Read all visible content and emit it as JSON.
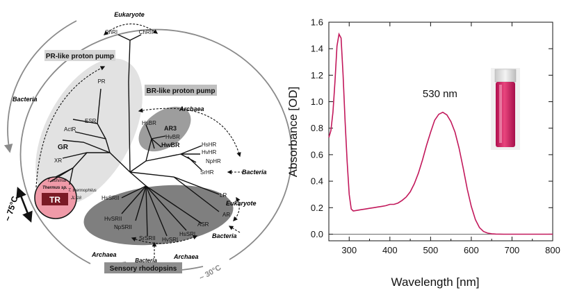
{
  "tree": {
    "groups": {
      "eukaryote_top": "Eukaryote",
      "pr_pump": "PR-like proton pump",
      "br_pump": "BR-like proton pump",
      "sensory": "Sensory  rhodopsins",
      "bacteria_left": "Bacteria",
      "archaea_br": "Archaea",
      "bacteria_srhr": "Bacteria",
      "eukaryote_lr": "Eukaryote",
      "bacteria_asr": "Bacteria",
      "archaea_sens_left": "Archaea",
      "archaea_sens_right": "Archaea",
      "bacteria_sens": "Bacteria"
    },
    "leaves": {
      "chri": "ChRI",
      "chrii": "ChRII",
      "pr": "PR",
      "esr": "ESR",
      "actr": "ActR",
      "gr": "GR",
      "xr": "XR",
      "hsbr": "HsBR",
      "ar3": "AR3",
      "hvbr": "HvBR",
      "hwbr": "HwBR",
      "hshr": "HsHR",
      "hvhr": "HvHR",
      "nphr": "NpHR",
      "srhr": "SrHR",
      "lr": "LR",
      "ar": "AR",
      "asr": "ASR",
      "hssrii": "HsSRII",
      "hvsrii": "HvSRII",
      "npsrii": "NpSRII",
      "srsrii": "SrSRII",
      "hvsri": "HvSRI",
      "hssri": "HsSRI"
    },
    "tr": {
      "label": "TR",
      "species_1": "T. oshimai",
      "species_2": "Thermus sp.",
      "species_3": "T. thermophilus",
      "species_4": "JL-18"
    },
    "temps": {
      "hot": "~ 75°C",
      "cool": "~ 30°C"
    }
  },
  "chart_data": {
    "type": "line",
    "ylabel": "Absorbance [OD]",
    "xlabel": "Wavelength [nm]",
    "xlim": [
      250,
      800
    ],
    "ylim": [
      -0.05,
      1.6
    ],
    "xticks": [
      300,
      400,
      500,
      600,
      700,
      800
    ],
    "yticks": [
      0.0,
      0.2,
      0.4,
      0.6,
      0.8,
      1.0,
      1.2,
      1.4,
      1.6
    ],
    "ytick_labels": [
      "0.0",
      "0.2",
      "0.4",
      "0.6",
      "0.8",
      "1.0",
      "1.2",
      "1.4",
      "1.6"
    ],
    "annotation": {
      "text": "530 nm",
      "x": 530,
      "y": 0.92
    },
    "line_color": "#c2185b",
    "series": [
      {
        "x": [
          250,
          255,
          260,
          265,
          270,
          275,
          280,
          285,
          290,
          295,
          300,
          305,
          310,
          320,
          330,
          340,
          350,
          360,
          370,
          380,
          390,
          400,
          410,
          420,
          430,
          440,
          450,
          460,
          470,
          480,
          490,
          500,
          510,
          520,
          530,
          540,
          550,
          560,
          570,
          580,
          590,
          600,
          610,
          620,
          630,
          640,
          650,
          660,
          680,
          700,
          720,
          740,
          760,
          780,
          800
        ],
        "y": [
          0.73,
          0.78,
          0.92,
          1.15,
          1.42,
          1.51,
          1.48,
          1.2,
          0.85,
          0.55,
          0.3,
          0.19,
          0.175,
          0.18,
          0.185,
          0.19,
          0.195,
          0.2,
          0.205,
          0.21,
          0.215,
          0.225,
          0.225,
          0.235,
          0.255,
          0.28,
          0.32,
          0.38,
          0.46,
          0.56,
          0.67,
          0.77,
          0.86,
          0.905,
          0.92,
          0.9,
          0.85,
          0.77,
          0.65,
          0.5,
          0.34,
          0.21,
          0.11,
          0.05,
          0.02,
          0.008,
          0.003,
          0.001,
          0.0,
          0.0,
          0.0,
          0.0,
          0.0,
          0.0,
          0.0
        ]
      }
    ]
  }
}
